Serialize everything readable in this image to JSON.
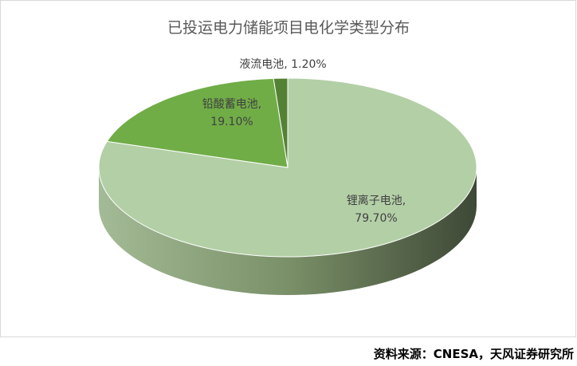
{
  "chart_data": {
    "type": "pie",
    "title": "已投运电力储能项目电化学类型分布",
    "values": [
      79.7,
      19.1,
      1.2
    ],
    "value_labels": [
      "锂离子电池, 79.70%",
      "铅酸蓄电池, 19.10%",
      "液流电池, 1.20%"
    ],
    "colors": [
      "#b3cfa6",
      "#70ad47",
      "#548235"
    ],
    "style": "3d"
  },
  "source": "资料来源：CNESA，天风证券研究所"
}
